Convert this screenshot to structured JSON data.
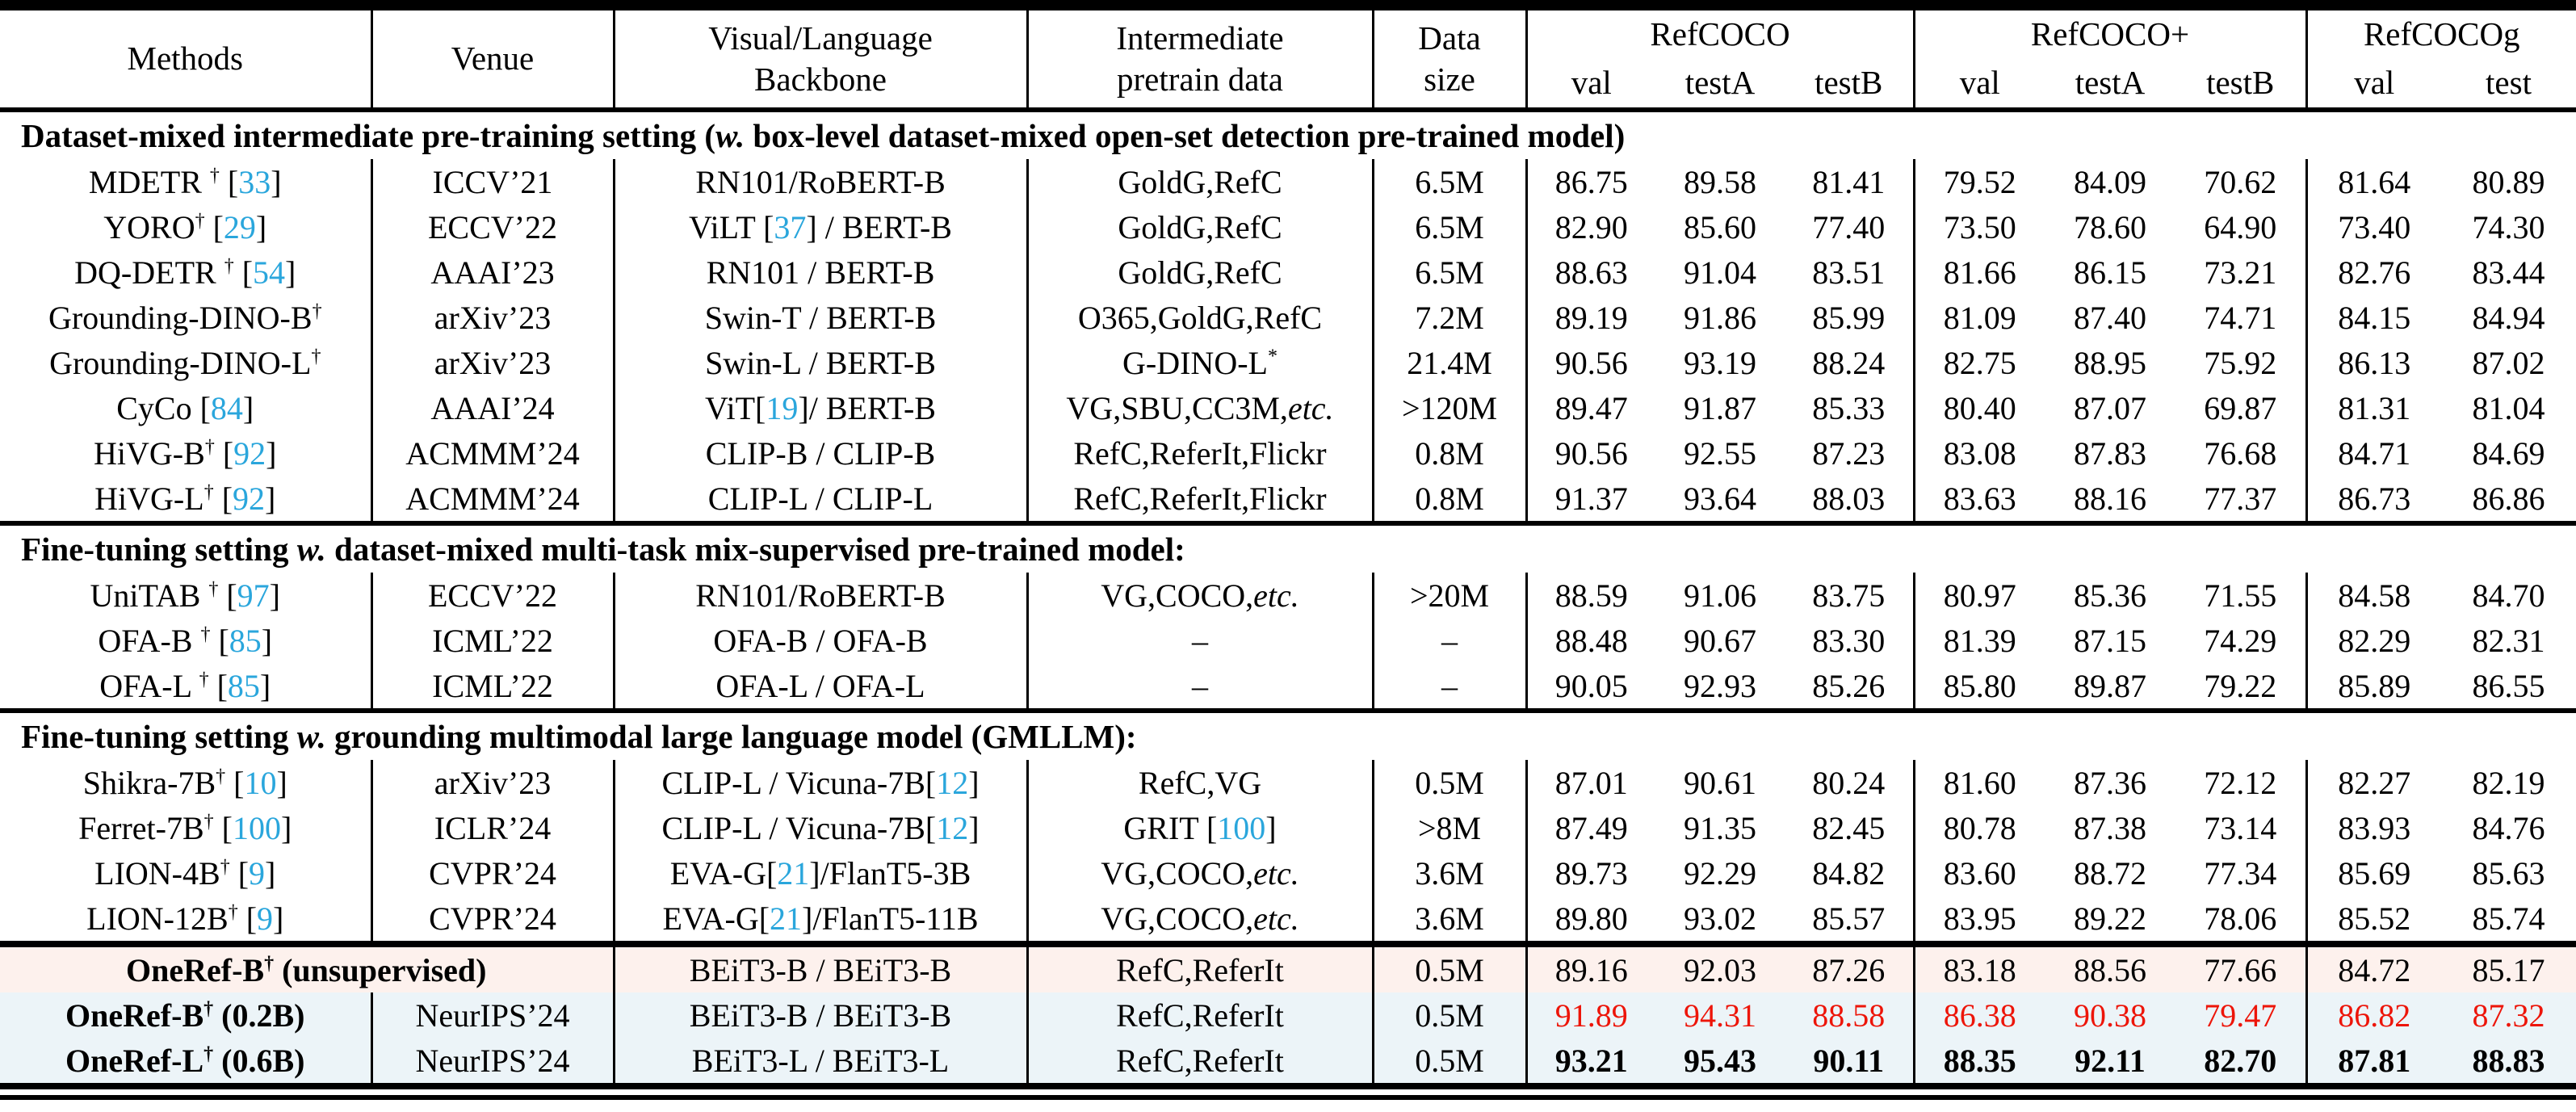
{
  "table": {
    "colors": {
      "cite": "#2aa6dc",
      "red": "#ed1509",
      "pink_bg": "#fdf1ed",
      "blue_bg": "#ecf4f8"
    },
    "header": {
      "methods": "Methods",
      "venue": "Venue",
      "backbone_line1": "Visual/Language",
      "backbone_line2": "Backbone",
      "pretrain_line1": "Intermediate",
      "pretrain_line2": "pretrain data",
      "size_line1": "Data",
      "size_line2": "size",
      "groups": [
        {
          "label": "RefCOCO",
          "cols": [
            "val",
            "testA",
            "testB"
          ]
        },
        {
          "label": "RefCOCO+",
          "cols": [
            "val",
            "testA",
            "testB"
          ]
        },
        {
          "label": "RefCOCOg",
          "cols": [
            "val",
            "test"
          ]
        }
      ]
    },
    "sections": [
      {
        "title": "Dataset-mixed intermediate pre-training setting (w. box-level dataset-mixed open-set detection pre-trained model)",
        "rows": [
          {
            "method": "MDETR † [33]",
            "venue": "ICCV’21",
            "backbone": "RN101/RoBERT-B",
            "pretrain": "GoldG,RefC",
            "size": "6.5M",
            "values": [
              "86.75",
              "89.58",
              "81.41",
              "79.52",
              "84.09",
              "70.62",
              "81.64",
              "80.89"
            ]
          },
          {
            "method": "YORO† [29]",
            "venue": "ECCV’22",
            "backbone": "ViLT [37] / BERT-B",
            "pretrain": "GoldG,RefC",
            "size": "6.5M",
            "values": [
              "82.90",
              "85.60",
              "77.40",
              "73.50",
              "78.60",
              "64.90",
              "73.40",
              "74.30"
            ]
          },
          {
            "method": "DQ-DETR † [54]",
            "venue": "AAAI’23",
            "backbone": "RN101 / BERT-B",
            "pretrain": "GoldG,RefC",
            "size": "6.5M",
            "values": [
              "88.63",
              "91.04",
              "83.51",
              "81.66",
              "86.15",
              "73.21",
              "82.76",
              "83.44"
            ]
          },
          {
            "method": "Grounding-DINO-B†",
            "venue": "arXiv’23",
            "backbone": "Swin-T / BERT-B",
            "pretrain": "O365,GoldG,RefC",
            "size": "7.2M",
            "values": [
              "89.19",
              "91.86",
              "85.99",
              "81.09",
              "87.40",
              "74.71",
              "84.15",
              "84.94"
            ]
          },
          {
            "method": "Grounding-DINO-L†",
            "venue": "arXiv’23",
            "backbone": "Swin-L / BERT-B",
            "pretrain": "G-DINO-L*",
            "size": "21.4M",
            "values": [
              "90.56",
              "93.19",
              "88.24",
              "82.75",
              "88.95",
              "75.92",
              "86.13",
              "87.02"
            ]
          },
          {
            "method": "CyCo [84]",
            "venue": "AAAI’24",
            "backbone": "ViT[19]/ BERT-B",
            "pretrain": "VG,SBU,CC3M,etc.",
            "size": ">120M",
            "values": [
              "89.47",
              "91.87",
              "85.33",
              "80.40",
              "87.07",
              "69.87",
              "81.31",
              "81.04"
            ]
          },
          {
            "method": "HiVG-B† [92]",
            "venue": "ACMMM’24",
            "backbone": "CLIP-B / CLIP-B",
            "pretrain": "RefC,ReferIt,Flickr",
            "size": "0.8M",
            "values": [
              "90.56",
              "92.55",
              "87.23",
              "83.08",
              "87.83",
              "76.68",
              "84.71",
              "84.69"
            ]
          },
          {
            "method": "HiVG-L† [92]",
            "venue": "ACMMM’24",
            "backbone": "CLIP-L / CLIP-L",
            "pretrain": "RefC,ReferIt,Flickr",
            "size": "0.8M",
            "values": [
              "91.37",
              "93.64",
              "88.03",
              "83.63",
              "88.16",
              "77.37",
              "86.73",
              "86.86"
            ]
          }
        ]
      },
      {
        "title": "Fine-tuning setting w. dataset-mixed multi-task mix-supervised pre-trained model:",
        "rows": [
          {
            "method": "UniTAB † [97]",
            "venue": "ECCV’22",
            "backbone": "RN101/RoBERT-B",
            "pretrain": "VG,COCO,etc.",
            "size": ">20M",
            "values": [
              "88.59",
              "91.06",
              "83.75",
              "80.97",
              "85.36",
              "71.55",
              "84.58",
              "84.70"
            ]
          },
          {
            "method": "OFA-B † [85]",
            "venue": "ICML’22",
            "backbone": "OFA-B / OFA-B",
            "pretrain": "–",
            "size": "–",
            "values": [
              "88.48",
              "90.67",
              "83.30",
              "81.39",
              "87.15",
              "74.29",
              "82.29",
              "82.31"
            ]
          },
          {
            "method": "OFA-L † [85]",
            "venue": "ICML’22",
            "backbone": "OFA-L / OFA-L",
            "pretrain": "–",
            "size": "–",
            "values": [
              "90.05",
              "92.93",
              "85.26",
              "85.80",
              "89.87",
              "79.22",
              "85.89",
              "86.55"
            ]
          }
        ]
      },
      {
        "title": "Fine-tuning setting w. grounding multimodal large language model (GMLLM):",
        "rows": [
          {
            "method": "Shikra-7B† [10]",
            "venue": "arXiv’23",
            "backbone": "CLIP-L / Vicuna-7B[12]",
            "pretrain": "RefC,VG",
            "size": "0.5M",
            "values": [
              "87.01",
              "90.61",
              "80.24",
              "81.60",
              "87.36",
              "72.12",
              "82.27",
              "82.19"
            ]
          },
          {
            "method": "Ferret-7B† [100]",
            "venue": "ICLR’24",
            "backbone": "CLIP-L / Vicuna-7B[12]",
            "pretrain": "GRIT [100]",
            "size": ">8M",
            "values": [
              "87.49",
              "91.35",
              "82.45",
              "80.78",
              "87.38",
              "73.14",
              "83.93",
              "84.76"
            ]
          },
          {
            "method": "LION-4B† [9]",
            "venue": "CVPR’24",
            "backbone": "EVA-G[21]/FlanT5-3B",
            "pretrain": "VG,COCO,etc.",
            "size": "3.6M",
            "values": [
              "89.73",
              "92.29",
              "84.82",
              "83.60",
              "88.72",
              "77.34",
              "85.69",
              "85.63"
            ]
          },
          {
            "method": "LION-12B† [9]",
            "venue": "CVPR’24",
            "backbone": "EVA-G[21]/FlanT5-11B",
            "pretrain": "VG,COCO,etc.",
            "size": "3.6M",
            "values": [
              "89.80",
              "93.02",
              "85.57",
              "83.95",
              "89.22",
              "78.06",
              "85.52",
              "85.74"
            ]
          }
        ]
      },
      {
        "title": null,
        "rows": [
          {
            "method": "OneRef-B† (unsupervised)",
            "venue": null,
            "backbone": "BEiT3-B / BEiT3-B",
            "pretrain": "RefC,ReferIt",
            "size": "0.5M",
            "values": [
              "89.16",
              "92.03",
              "87.26",
              "83.18",
              "88.56",
              "77.66",
              "84.72",
              "85.17"
            ],
            "bg": "pink",
            "method_bold": true
          },
          {
            "method": "OneRef-B† (0.2B)",
            "venue": "NeurIPS’24",
            "backbone": "BEiT3-B / BEiT3-B",
            "pretrain": "RefC,ReferIt",
            "size": "0.5M",
            "values": [
              "91.89",
              "94.31",
              "88.58",
              "86.38",
              "90.38",
              "79.47",
              "86.82",
              "87.32"
            ],
            "bg": "blue",
            "method_bold": true,
            "values_red": true
          },
          {
            "method": "OneRef-L† (0.6B)",
            "venue": "NeurIPS’24",
            "backbone": "BEiT3-L / BEiT3-L",
            "pretrain": "RefC,ReferIt",
            "size": "0.5M",
            "values": [
              "93.21",
              "95.43",
              "90.11",
              "88.35",
              "92.11",
              "82.70",
              "87.81",
              "88.83"
            ],
            "bg": "blue",
            "method_bold": true,
            "values_bold": true
          }
        ]
      }
    ]
  }
}
